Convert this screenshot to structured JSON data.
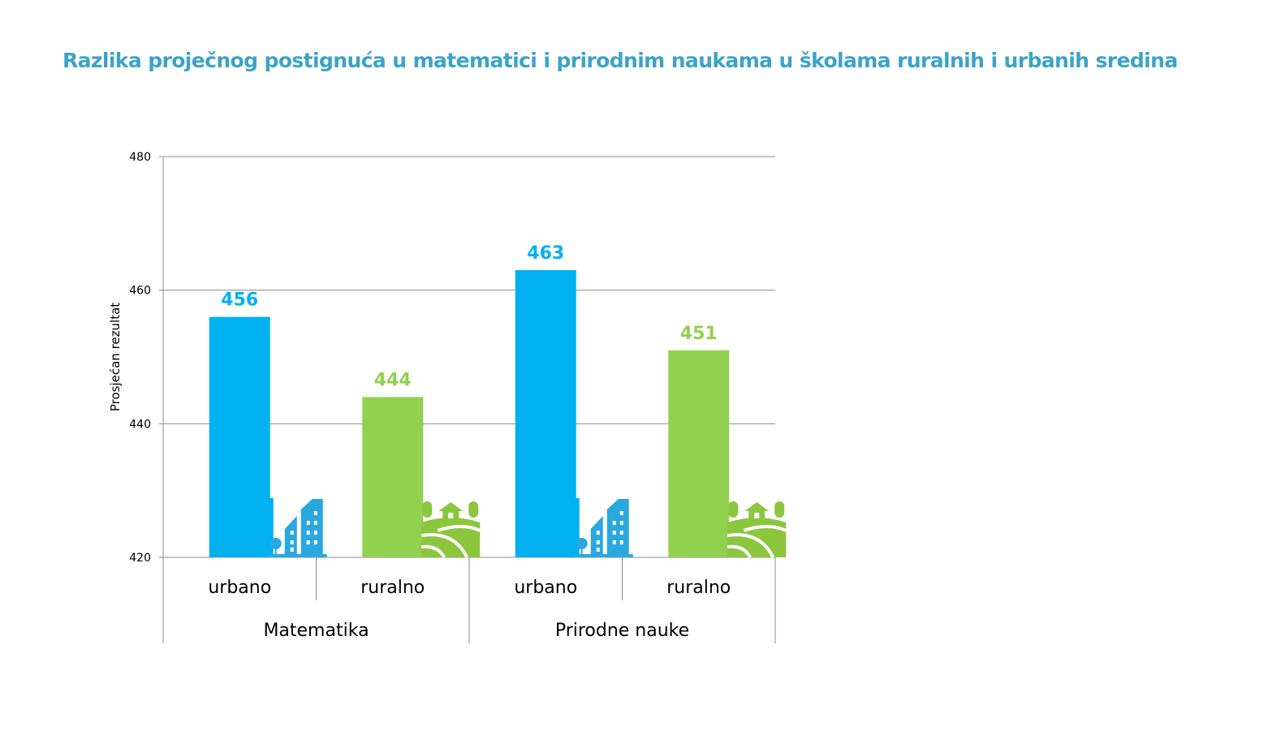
{
  "title": "Razlika proječnog postignuća u matematici i prirodnim naukama u školama ruralnih i urbanih sredina",
  "chart_data": {
    "type": "bar",
    "title": "Razlika proječnog postignuća u matematici i prirodnim naukama u školama ruralnih i urbanih sredina",
    "ylabel": "Prosjećan rezultat",
    "xlabel": "",
    "ylim": [
      420,
      480
    ],
    "yticks": [
      420,
      440,
      460,
      480
    ],
    "grid": true,
    "groups": [
      {
        "label": "Matematika",
        "bars": [
          {
            "category": "urbano",
            "value": 456,
            "color": "#00b0f0",
            "icon": "city-icon"
          },
          {
            "category": "ruralno",
            "value": 444,
            "color": "#92d050",
            "icon": "rural-house-icon"
          }
        ]
      },
      {
        "label": "Prirodne nauke",
        "bars": [
          {
            "category": "urbano",
            "value": 463,
            "color": "#00b0f0",
            "icon": "city-icon"
          },
          {
            "category": "ruralno",
            "value": 451,
            "color": "#92d050",
            "icon": "rural-house-icon"
          }
        ]
      }
    ]
  }
}
